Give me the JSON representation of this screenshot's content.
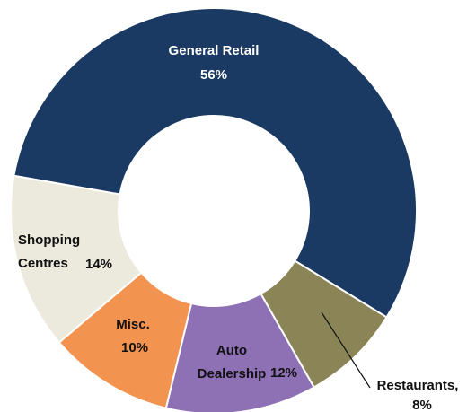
{
  "chart_data": {
    "type": "donut",
    "categories": [
      "General Retail",
      "Restaurants,",
      "Auto Dealership",
      "Misc.",
      "Shopping Centres"
    ],
    "values": [
      56,
      8,
      12,
      10,
      14
    ],
    "value_labels": [
      "56%",
      "8%",
      "12%",
      "10%",
      "14%"
    ],
    "colors": [
      "#1b3a63",
      "#8a8456",
      "#8e70b5",
      "#f39350",
      "#ece9dd"
    ]
  }
}
